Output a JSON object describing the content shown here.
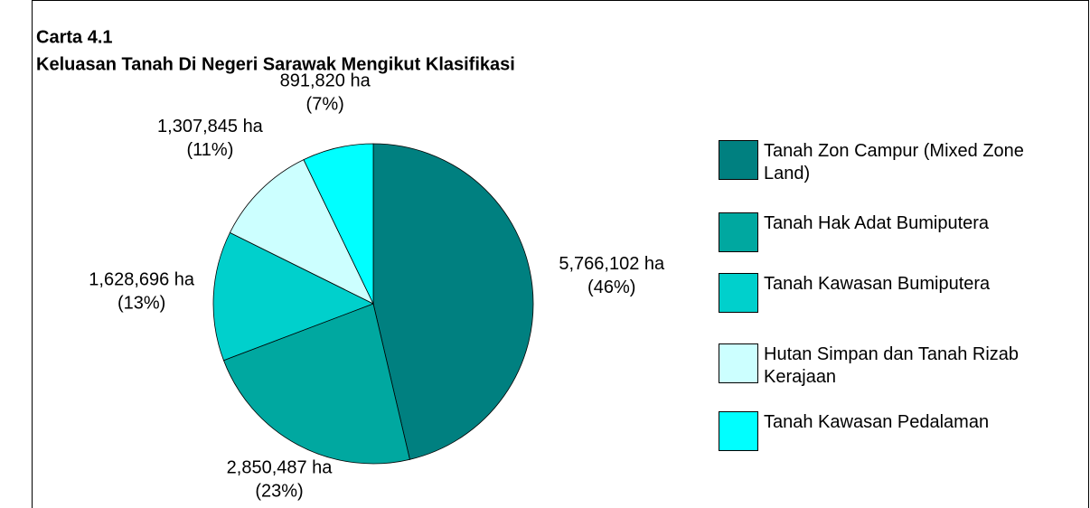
{
  "chart_data": {
    "type": "pie",
    "title": "Carta 4.1",
    "subtitle": "Keluasan Tanah Di Negeri Sarawak Mengikut Klasifikasi",
    "series": [
      {
        "name": "Tanah Zon Campur (Mixed Zone Land)",
        "color": "#008080",
        "value": 5766102,
        "value_labels": [
          "5,766,102 ha",
          "(46%)"
        ]
      },
      {
        "name": "Tanah Hak Adat Bumiputera",
        "color": "#00a8a0",
        "value": 2850487,
        "value_labels": [
          "2,850,487 ha",
          "(23%)"
        ]
      },
      {
        "name": "Tanah Kawasan Bumiputera",
        "color": "#00d0cc",
        "value": 1628696,
        "value_labels": [
          "1,628,696 ha",
          "(13%)"
        ]
      },
      {
        "name": "Hutan Simpan dan Tanah Rizab Kerajaan",
        "color": "#ccffff",
        "value": 1307845,
        "value_labels": [
          "1,307,845 ha",
          "(11%)"
        ]
      },
      {
        "name": "Tanah Kawasan Pedalaman",
        "color": "#00ffff",
        "value": 891820,
        "value_labels": [
          "891,820 ha",
          "(7%)"
        ]
      }
    ],
    "legend": "right"
  }
}
